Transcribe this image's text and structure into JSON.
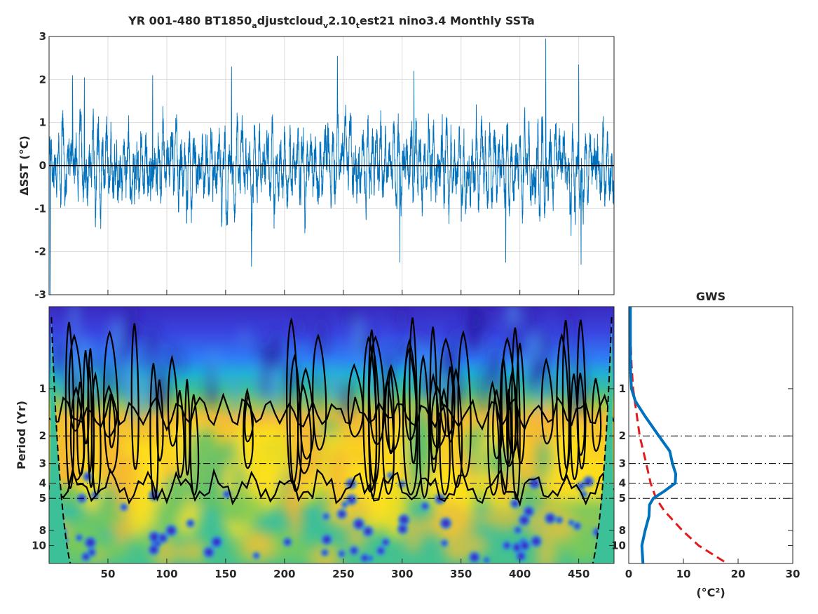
{
  "figure": {
    "title_parts": {
      "main1": "YR 001-480 BT1850",
      "sub1": "a",
      "main2": "djustcloud",
      "sub2": "v",
      "main3": "2.10",
      "sub3": "t",
      "main4": "est21 nino3.4 Monthly SSTa"
    }
  },
  "chart_data": [
    {
      "id": "timeseries",
      "type": "line",
      "title": "",
      "xlabel": "",
      "ylabel": "ΔSST (°C)",
      "xlim": [
        0,
        480
      ],
      "ylim": [
        -3,
        3
      ],
      "xticks": [
        50,
        100,
        150,
        200,
        250,
        300,
        350,
        400,
        450
      ],
      "yticks": [
        -3,
        -2,
        -1,
        0,
        1,
        2,
        3
      ],
      "grid": true,
      "zero_line": true,
      "series_color": "#0072BD",
      "samples_per_year": 12,
      "notable_extremes": [
        {
          "x": 1,
          "y": -3.0
        },
        {
          "x": 20,
          "y": 2.1
        },
        {
          "x": 30,
          "y": 2.05
        },
        {
          "x": 88,
          "y": 2.1
        },
        {
          "x": 155,
          "y": 2.3
        },
        {
          "x": 172,
          "y": -2.35
        },
        {
          "x": 245,
          "y": 2.55
        },
        {
          "x": 298,
          "y": -2.25
        },
        {
          "x": 310,
          "y": 2.2
        },
        {
          "x": 388,
          "y": -2.25
        },
        {
          "x": 422,
          "y": 2.95
        },
        {
          "x": 450,
          "y": 2.35
        },
        {
          "x": 452,
          "y": -2.3
        }
      ]
    },
    {
      "id": "wavelet",
      "type": "heatmap",
      "title": "",
      "xlabel": "",
      "ylabel": "Period (Yr)",
      "xlim": [
        0,
        480
      ],
      "ylim": [
        0.3,
        13
      ],
      "yscale": "log",
      "xticks": [
        50,
        100,
        150,
        200,
        250,
        300,
        350,
        400,
        450
      ],
      "yticks": [
        1,
        2,
        3,
        4,
        5,
        8,
        10
      ],
      "yticklabels": [
        "1",
        "2",
        "3",
        "4",
        "5",
        "8",
        "10"
      ],
      "reference_periods": [
        2,
        3,
        4,
        5
      ],
      "colormap": "parula",
      "peak_band_years": [
        2,
        5
      ],
      "significance_contours": true,
      "cone_of_influence": true
    },
    {
      "id": "gws",
      "type": "line",
      "title": "GWS",
      "xlabel": "(°C²)",
      "ylabel": "",
      "xlim": [
        0,
        30
      ],
      "xticks": [
        0,
        10,
        20,
        30
      ],
      "ylim": [
        0.3,
        13
      ],
      "yscale": "log",
      "yticks": [
        1,
        2,
        3,
        4,
        5,
        8,
        10
      ],
      "yticklabels": [
        "1",
        "2",
        "3",
        "4",
        "5",
        "8",
        "10"
      ],
      "reference_periods": [
        2,
        3,
        4,
        5
      ],
      "series": [
        {
          "style": "solid",
          "color": "#0072BD",
          "points": [
            [
              0.3,
              0.3
            ],
            [
              0.6,
              0.3
            ],
            [
              0.8,
              0.35
            ],
            [
              1.0,
              0.5
            ],
            [
              1.2,
              1.2
            ],
            [
              1.5,
              3.0
            ],
            [
              2.0,
              5.5
            ],
            [
              2.5,
              7.5
            ],
            [
              3.0,
              8.0
            ],
            [
              3.5,
              8.6
            ],
            [
              4.0,
              8.5
            ],
            [
              4.5,
              6.5
            ],
            [
              5.0,
              4.5
            ],
            [
              5.5,
              3.8
            ],
            [
              6.5,
              3.7
            ],
            [
              8.0,
              3.0
            ],
            [
              10,
              2.4
            ],
            [
              13,
              2.6
            ]
          ]
        },
        {
          "style": "dashed",
          "color": "#E31A1C",
          "points": [
            [
              0.3,
              0.1
            ],
            [
              0.5,
              0.35
            ],
            [
              0.7,
              0.5
            ],
            [
              1.0,
              0.8
            ],
            [
              1.5,
              1.5
            ],
            [
              2.0,
              2.0
            ],
            [
              3.0,
              3.2
            ],
            [
              4.0,
              4.0
            ],
            [
              5.0,
              5.0
            ],
            [
              6.0,
              6.5
            ],
            [
              8.0,
              9.8
            ],
            [
              10.0,
              12.8
            ],
            [
              13,
              18.0
            ]
          ]
        }
      ]
    }
  ]
}
